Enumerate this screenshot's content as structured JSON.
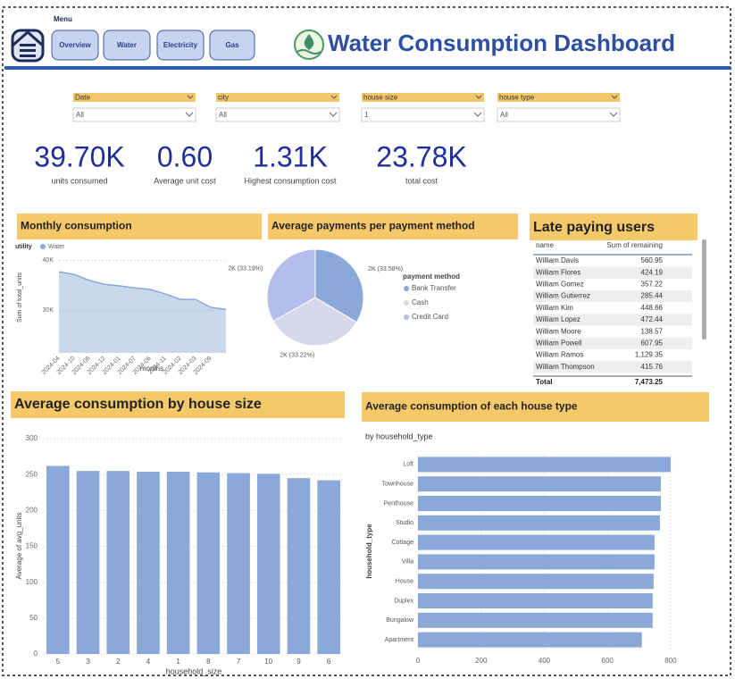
{
  "menu": {
    "label": "Menu",
    "buttons": [
      "Overview",
      "Water",
      "Electricity",
      "Gas"
    ]
  },
  "header": {
    "title": "Water Consumption Dashboard"
  },
  "filters": [
    {
      "label": "Date",
      "value": "All"
    },
    {
      "label": "city",
      "value": "All"
    },
    {
      "label": "house size",
      "value": "1"
    },
    {
      "label": "house type",
      "value": "All"
    }
  ],
  "kpis": [
    {
      "value": "39.70K",
      "label": "units consumed"
    },
    {
      "value": "0.60",
      "label": "Average unit cost"
    },
    {
      "value": "1.31K",
      "label": "Highest consumption cost"
    },
    {
      "value": "23.78K",
      "label": "total cost"
    }
  ],
  "chart_data": [
    {
      "type": "area",
      "title": "Monthly consumption",
      "legend_title": "utility",
      "x_label": "months",
      "y_label": "Sum of total_units",
      "categories": [
        "2024-04",
        "2024-10",
        "2024-08",
        "2024-12",
        "2024-01",
        "2024-07",
        "2024-06",
        "2024-11",
        "2024-02",
        "2024-03",
        "2024-09",
        null
      ],
      "series": [
        {
          "name": "Water",
          "color": "#8aa8d8",
          "values": [
            37700,
            37200,
            36000,
            35200,
            34900,
            34500,
            34200,
            33300,
            32200,
            32200,
            30600,
            30200
          ]
        }
      ],
      "ylim": [
        21500,
        41500
      ],
      "yticks": [
        {
          "value": 40000,
          "label": "40K"
        },
        {
          "value": 30000,
          "label": "30K"
        }
      ],
      "grid": true
    },
    {
      "type": "pie",
      "title": "Average payments per payment method",
      "legend_title": "payment method",
      "categories": [
        "Bank Transfer",
        "Cash",
        "Credit Card"
      ],
      "values": [
        33.58,
        33.22,
        33.19
      ],
      "value_labels": [
        "2K (33.58%)",
        "2K (33.22%)",
        "2K (33.19%)"
      ],
      "colors": [
        "#8aa8d8",
        "#d6d9ea",
        "#b7bdea"
      ]
    },
    {
      "type": "bar",
      "title": "Average consumption by house size",
      "x_label": "household_size",
      "y_label": "Average of avg_units",
      "categories": [
        "5",
        "3",
        "2",
        "4",
        "1",
        "8",
        "7",
        "10",
        "9",
        "6"
      ],
      "values": [
        262,
        255,
        255,
        254,
        254,
        253,
        252,
        251,
        245,
        242
      ],
      "color": "#8aa8d8",
      "ylim": [
        0,
        300
      ],
      "yticks": [
        0,
        50,
        100,
        150,
        200,
        250,
        300
      ],
      "grid": true
    },
    {
      "type": "hbar",
      "title": "Average consumption of each house type",
      "subtitle": "by household_type",
      "y_label": "household_type",
      "categories": [
        "Loft",
        "Townhouse",
        "Penthouse",
        "Studio",
        "Cottage",
        "Villa",
        "House",
        "Duplex",
        "Bungalow",
        "Apartment"
      ],
      "values": [
        800,
        769,
        769,
        766,
        749,
        749,
        746,
        743,
        743,
        709
      ],
      "color": "#8aa8d8",
      "xlim": [
        0,
        820
      ],
      "xticks": [
        0,
        200,
        400,
        600,
        800
      ],
      "grid": true
    }
  ],
  "late_paying_users": {
    "title": "Late paying users",
    "columns": [
      "name",
      "Sum of remaining"
    ],
    "rows": [
      [
        "William Davis",
        "560.95"
      ],
      [
        "William Flores",
        "424.19"
      ],
      [
        "William Gomez",
        "357.22"
      ],
      [
        "William Gutierrez",
        "285.44"
      ],
      [
        "William Kim",
        "448.66"
      ],
      [
        "William Lopez",
        "472.44"
      ],
      [
        "William Moore",
        "138.57"
      ],
      [
        "William Powell",
        "607.95"
      ],
      [
        "William Ramos",
        "1,129.35"
      ],
      [
        "William Thompson",
        "415.76"
      ]
    ],
    "total": [
      "Total",
      "7,473.25"
    ]
  }
}
